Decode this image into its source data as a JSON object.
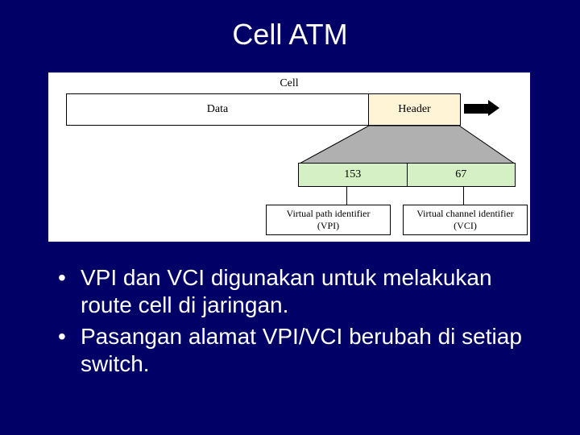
{
  "title": "Cell ATM",
  "diagram": {
    "background": "#ffffff",
    "cell_label": "Cell",
    "data_label": "Data",
    "header_label": "Header",
    "header_bg": "#fff4d6",
    "vpi_value": "153",
    "vci_value": "67",
    "vpi_vci_bg": "#d4f0c4",
    "trapezoid_fill": "#b0b0b0",
    "vpi_box_label": "Virtual path identifier\n(VPI)",
    "vci_box_label": "Virtual channel identifier\n(VCI)",
    "font_family_serif": "Times New Roman"
  },
  "bullets": [
    "VPI dan VCI digunakan untuk melakukan route cell di jaringan.",
    "Pasangan alamat VPI/VCI berubah di setiap switch."
  ],
  "colors": {
    "slide_bg": "#000066",
    "text": "#ffffff",
    "border": "#000000"
  }
}
